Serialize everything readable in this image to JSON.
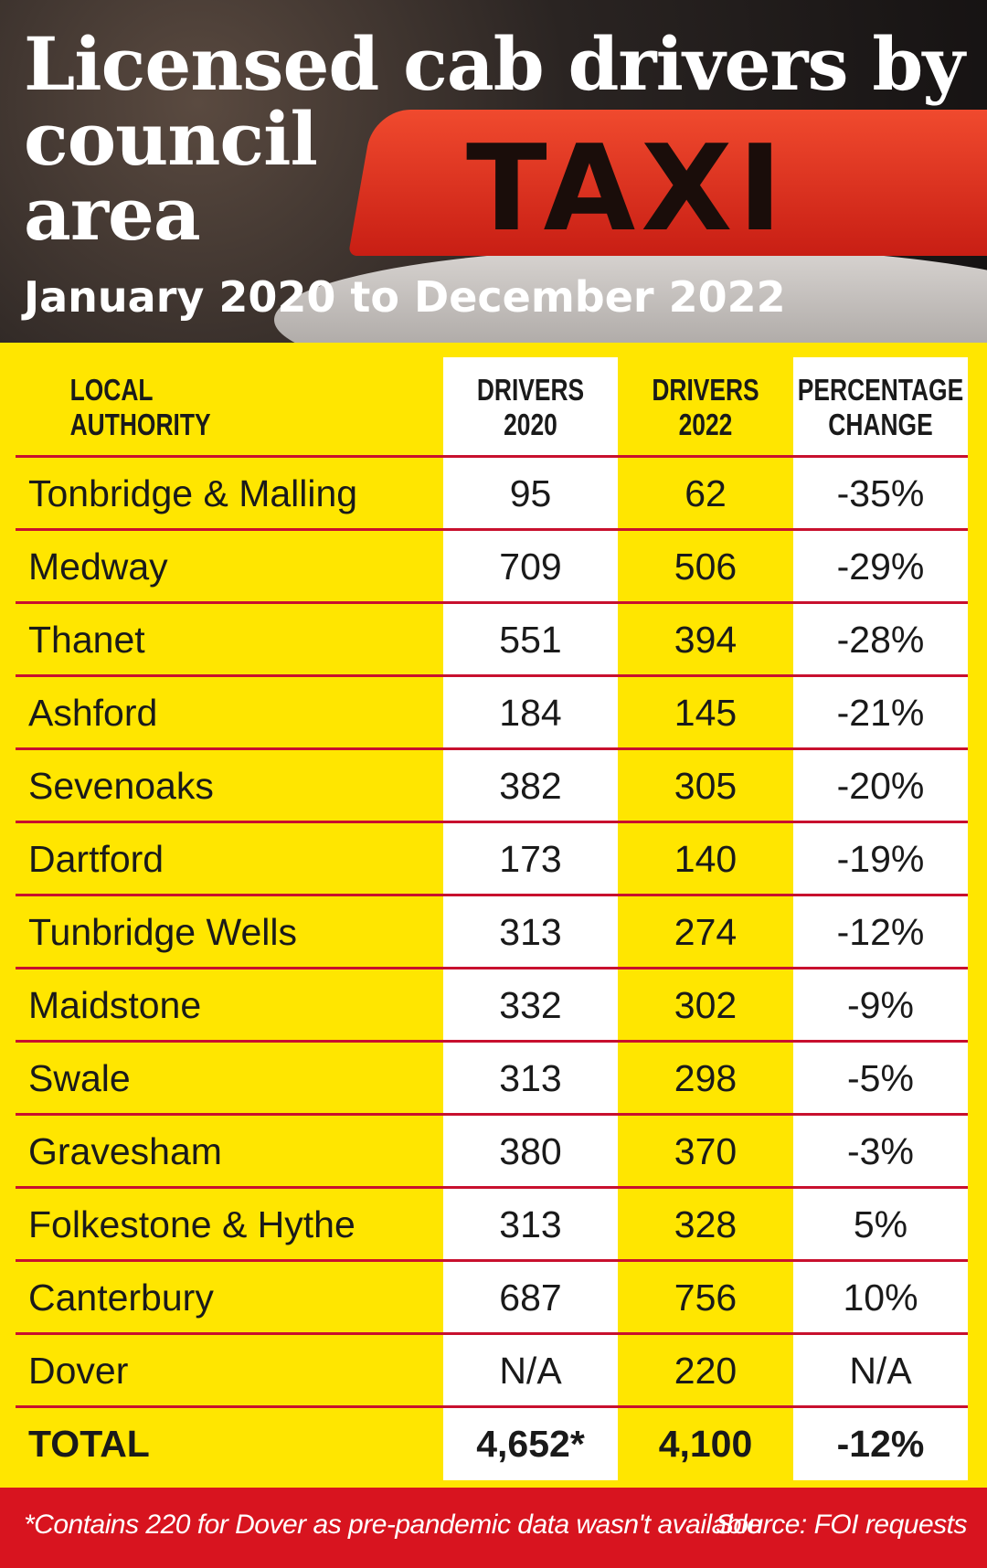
{
  "header": {
    "title_lines": [
      "Licensed cab drivers by",
      "council",
      "area"
    ],
    "subtitle": "January 2020 to December 2022",
    "image_text": "TAXI"
  },
  "table": {
    "columns": [
      [
        "LOCAL",
        "AUTHORITY"
      ],
      [
        "DRIVERS",
        "2020"
      ],
      [
        "DRIVERS",
        "2022"
      ],
      [
        "PERCENTAGE",
        "CHANGE"
      ]
    ],
    "rows": [
      [
        "Tonbridge & Malling",
        "95",
        "62",
        "-35%"
      ],
      [
        "Medway",
        "709",
        "506",
        "-29%"
      ],
      [
        "Thanet",
        "551",
        "394",
        "-28%"
      ],
      [
        "Ashford",
        "184",
        "145",
        "-21%"
      ],
      [
        "Sevenoaks",
        "382",
        "305",
        "-20%"
      ],
      [
        "Dartford",
        "173",
        "140",
        "-19%"
      ],
      [
        "Tunbridge Wells",
        "313",
        "274",
        "-12%"
      ],
      [
        "Maidstone",
        "332",
        "302",
        "-9%"
      ],
      [
        "Swale",
        "313",
        "298",
        "-5%"
      ],
      [
        "Gravesham",
        "380",
        "370",
        "-3%"
      ],
      [
        "Folkestone & Hythe",
        "313",
        "328",
        "5%"
      ],
      [
        "Canterbury",
        "687",
        "756",
        "10%"
      ],
      [
        "Dover",
        "N/A",
        "220",
        "N/A"
      ]
    ],
    "total": [
      "TOTAL",
      "4,652*",
      "4,100",
      "-12%"
    ]
  },
  "footer": {
    "note": "*Contains 220 for Dover as pre-pandemic data wasn't available",
    "source": "Source: FOI requests"
  }
}
